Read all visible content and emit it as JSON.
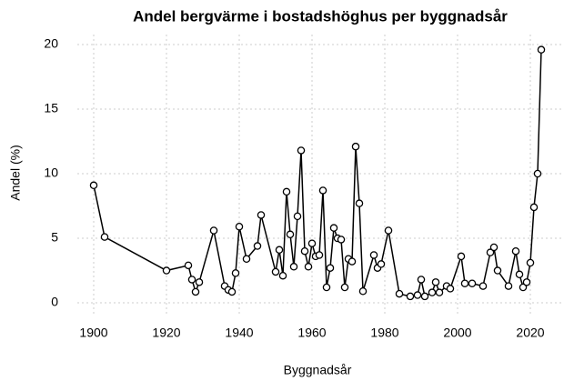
{
  "chart_data": {
    "type": "line",
    "title": "Andel bergvärme i bostadshöghus per byggnadsår",
    "x_label": "Byggnadsår",
    "y_label": "Andel (%)",
    "x": [
      1900,
      1903,
      1920,
      1926,
      1927,
      1928,
      1929,
      1933,
      1936,
      1937,
      1938,
      1939,
      1940,
      1942,
      1945,
      1946,
      1950,
      1951,
      1952,
      1953,
      1954,
      1955,
      1956,
      1957,
      1958,
      1959,
      1960,
      1961,
      1962,
      1963,
      1964,
      1965,
      1966,
      1967,
      1968,
      1969,
      1970,
      1971,
      1972,
      1973,
      1974,
      1977,
      1978,
      1979,
      1981,
      1984,
      1987,
      1989,
      1990,
      1991,
      1993,
      1994,
      1995,
      1997,
      1998,
      2001,
      2002,
      2004,
      2007,
      2009,
      2010,
      2011,
      2014,
      2016,
      2017,
      2018,
      2019,
      2020,
      2021,
      2022,
      2023
    ],
    "series": [
      {
        "color": "#000000",
        "values": [
          9.1,
          5.1,
          2.5,
          2.9,
          1.8,
          0.85,
          1.6,
          5.6,
          1.3,
          1.0,
          0.85,
          2.3,
          5.9,
          3.4,
          4.4,
          6.8,
          2.4,
          4.1,
          2.1,
          8.6,
          5.3,
          2.8,
          6.7,
          11.8,
          4.0,
          2.8,
          4.6,
          3.6,
          3.7,
          8.7,
          1.2,
          2.7,
          5.8,
          5.0,
          4.9,
          1.2,
          3.4,
          3.2,
          12.1,
          7.7,
          0.9,
          3.7,
          2.7,
          3.0,
          5.6,
          0.7,
          0.5,
          0.6,
          1.8,
          0.5,
          0.8,
          1.6,
          0.8,
          1.3,
          1.1,
          3.6,
          1.5,
          1.5,
          1.3,
          3.9,
          4.3,
          2.5,
          1.3,
          4.0,
          2.2,
          1.2,
          1.6,
          3.1,
          7.4,
          10.0,
          19.6
        ]
      }
    ],
    "xlim": [
      1895,
      2028
    ],
    "ylim": [
      -0.8,
      20.4
    ],
    "xticks": [
      1900,
      1920,
      1940,
      1960,
      1980,
      2000,
      2020
    ],
    "yticks": [
      0,
      5,
      10,
      15,
      20
    ],
    "grid": true
  }
}
